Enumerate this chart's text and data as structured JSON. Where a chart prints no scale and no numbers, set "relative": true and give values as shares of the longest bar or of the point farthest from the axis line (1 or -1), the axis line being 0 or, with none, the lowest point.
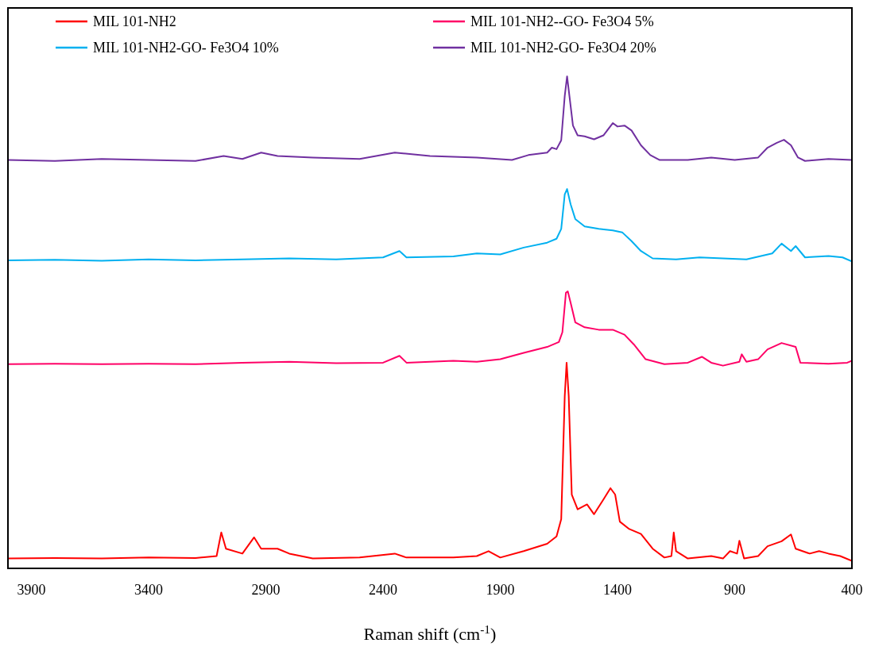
{
  "chart_data": {
    "type": "line",
    "relative": true,
    "xlabel": "Raman shift (cm$^{-1}$)",
    "xlim": [
      4000,
      400
    ],
    "xticks": [
      3900,
      3400,
      2900,
      2400,
      1900,
      1400,
      900,
      400
    ],
    "legend": "top",
    "marker": "none",
    "line_style": "solid",
    "grid": false,
    "series": [
      {
        "name": "MIL 101-NH2",
        "color": "#ff0000",
        "x": [
          4000,
          3800,
          3600,
          3400,
          3200,
          3110,
          3090,
          3070,
          3000,
          2950,
          2920,
          2850,
          2800,
          2700,
          2500,
          2350,
          2300,
          2100,
          2000,
          1950,
          1900,
          1800,
          1700,
          1660,
          1640,
          1625,
          1617,
          1608,
          1595,
          1570,
          1530,
          1500,
          1460,
          1430,
          1410,
          1390,
          1350,
          1300,
          1250,
          1200,
          1170,
          1160,
          1150,
          1100,
          1000,
          950,
          920,
          890,
          880,
          860,
          800,
          760,
          700,
          660,
          640,
          580,
          540,
          500,
          450,
          400
        ],
        "values": [
          0.02,
          0.021,
          0.02,
          0.022,
          0.021,
          0.025,
          0.073,
          0.04,
          0.03,
          0.063,
          0.04,
          0.04,
          0.03,
          0.02,
          0.022,
          0.03,
          0.022,
          0.022,
          0.025,
          0.035,
          0.022,
          0.035,
          0.05,
          0.065,
          0.1,
          0.35,
          0.418,
          0.35,
          0.15,
          0.12,
          0.13,
          0.11,
          0.14,
          0.163,
          0.15,
          0.095,
          0.08,
          0.07,
          0.04,
          0.022,
          0.025,
          0.073,
          0.035,
          0.02,
          0.025,
          0.02,
          0.035,
          0.03,
          0.056,
          0.02,
          0.025,
          0.045,
          0.055,
          0.069,
          0.04,
          0.03,
          0.035,
          0.03,
          0.025,
          0.015
        ]
      },
      {
        "name": "MIL 101-NH2--GO- Fe3O4 5%",
        "color": "#ff0066",
        "x": [
          4000,
          3800,
          3600,
          3400,
          3200,
          3000,
          2800,
          2600,
          2400,
          2330,
          2300,
          2100,
          2000,
          1900,
          1800,
          1700,
          1650,
          1635,
          1620,
          1612,
          1600,
          1580,
          1540,
          1480,
          1420,
          1370,
          1330,
          1280,
          1200,
          1100,
          1040,
          1000,
          950,
          880,
          870,
          850,
          800,
          760,
          700,
          640,
          620,
          500,
          420,
          400
        ],
        "values": [
          0.415,
          0.416,
          0.415,
          0.416,
          0.415,
          0.418,
          0.42,
          0.417,
          0.418,
          0.432,
          0.418,
          0.422,
          0.42,
          0.425,
          0.438,
          0.45,
          0.46,
          0.48,
          0.56,
          0.563,
          0.54,
          0.5,
          0.49,
          0.485,
          0.485,
          0.475,
          0.455,
          0.425,
          0.415,
          0.418,
          0.43,
          0.418,
          0.412,
          0.42,
          0.435,
          0.42,
          0.425,
          0.445,
          0.458,
          0.45,
          0.418,
          0.416,
          0.418,
          0.422
        ]
      },
      {
        "name": "MIL 101-NH2-GO- Fe3O4 10%",
        "color": "#00b0f0",
        "x": [
          4000,
          3800,
          3600,
          3400,
          3200,
          3000,
          2800,
          2600,
          2400,
          2330,
          2300,
          2100,
          2000,
          1900,
          1800,
          1700,
          1660,
          1640,
          1625,
          1615,
          1600,
          1580,
          1540,
          1480,
          1420,
          1380,
          1340,
          1300,
          1250,
          1150,
          1050,
          950,
          850,
          740,
          700,
          660,
          640,
          600,
          500,
          440,
          400
        ],
        "values": [
          0.626,
          0.627,
          0.625,
          0.628,
          0.626,
          0.628,
          0.63,
          0.628,
          0.632,
          0.645,
          0.632,
          0.634,
          0.64,
          0.638,
          0.652,
          0.662,
          0.67,
          0.69,
          0.76,
          0.771,
          0.74,
          0.71,
          0.695,
          0.69,
          0.687,
          0.683,
          0.665,
          0.645,
          0.63,
          0.628,
          0.632,
          0.63,
          0.628,
          0.64,
          0.66,
          0.645,
          0.655,
          0.632,
          0.635,
          0.632,
          0.624
        ]
      },
      {
        "name": "MIL 101-NH2-GO- Fe3O4 20%",
        "color": "#7030a0",
        "x": [
          4000,
          3800,
          3600,
          3400,
          3200,
          3080,
          3000,
          2920,
          2850,
          2700,
          2500,
          2350,
          2200,
          2000,
          1850,
          1780,
          1700,
          1680,
          1660,
          1640,
          1625,
          1615,
          1605,
          1590,
          1570,
          1540,
          1500,
          1460,
          1420,
          1400,
          1370,
          1340,
          1300,
          1260,
          1220,
          1100,
          1000,
          900,
          800,
          760,
          720,
          690,
          660,
          630,
          600,
          500,
          400
        ],
        "values": [
          0.83,
          0.828,
          0.832,
          0.83,
          0.828,
          0.838,
          0.832,
          0.845,
          0.838,
          0.835,
          0.832,
          0.845,
          0.838,
          0.835,
          0.83,
          0.84,
          0.845,
          0.855,
          0.852,
          0.87,
          0.96,
          1.0,
          0.96,
          0.9,
          0.88,
          0.878,
          0.872,
          0.88,
          0.905,
          0.898,
          0.9,
          0.89,
          0.86,
          0.84,
          0.83,
          0.83,
          0.835,
          0.83,
          0.835,
          0.855,
          0.865,
          0.871,
          0.86,
          0.835,
          0.828,
          0.832,
          0.83
        ]
      }
    ]
  }
}
